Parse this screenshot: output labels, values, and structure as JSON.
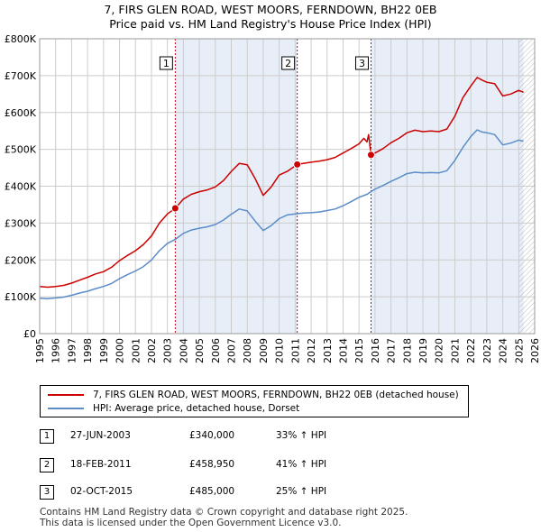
{
  "title_line1": "7, FIRS GLEN ROAD, WEST MOORS, FERNDOWN, BH22 0EB",
  "title_line2": "Price paid vs. HM Land Registry's House Price Index (HPI)",
  "colors": {
    "property": "#cc0000",
    "hpi": "#5b8cc8",
    "shade": "#e8eef8",
    "grid": "#cccccc",
    "vline": "#cc0000"
  },
  "chart_data": {
    "type": "line",
    "ylim": [
      0,
      800000
    ],
    "xlim": [
      1995,
      2026
    ],
    "yticks": [
      {
        "v": 0,
        "label": "£0"
      },
      {
        "v": 100000,
        "label": "£100K"
      },
      {
        "v": 200000,
        "label": "£200K"
      },
      {
        "v": 300000,
        "label": "£300K"
      },
      {
        "v": 400000,
        "label": "£400K"
      },
      {
        "v": 500000,
        "label": "£500K"
      },
      {
        "v": 600000,
        "label": "£600K"
      },
      {
        "v": 700000,
        "label": "£700K"
      },
      {
        "v": 800000,
        "label": "£800K"
      }
    ],
    "xticks": [
      "1995",
      "1996",
      "1997",
      "1998",
      "1999",
      "2000",
      "2001",
      "2002",
      "2003",
      "2004",
      "2005",
      "2006",
      "2007",
      "2008",
      "2009",
      "2010",
      "2011",
      "2012",
      "2013",
      "2014",
      "2015",
      "2016",
      "2017",
      "2018",
      "2019",
      "2020",
      "2021",
      "2022",
      "2023",
      "2024",
      "2025",
      "2026"
    ],
    "shaded_periods": [
      [
        2003.49,
        2011.13
      ],
      [
        2015.75,
        2025.3
      ]
    ],
    "hatch_from": 2025.0,
    "series": [
      {
        "name": "7, FIRS GLEN ROAD, WEST MOORS, FERNDOWN, BH22 0EB (detached house)",
        "color": "#cc0000",
        "points": [
          [
            1995,
            128000
          ],
          [
            1995.5,
            126000
          ],
          [
            1996,
            128000
          ],
          [
            1996.5,
            131000
          ],
          [
            1997,
            137000
          ],
          [
            1997.5,
            145000
          ],
          [
            1998,
            153000
          ],
          [
            1998.5,
            162000
          ],
          [
            1999,
            168000
          ],
          [
            1999.5,
            180000
          ],
          [
            2000,
            198000
          ],
          [
            2000.5,
            212000
          ],
          [
            2001,
            225000
          ],
          [
            2001.5,
            242000
          ],
          [
            2002,
            265000
          ],
          [
            2002.5,
            300000
          ],
          [
            2003,
            325000
          ],
          [
            2003.49,
            340000
          ],
          [
            2004,
            365000
          ],
          [
            2004.5,
            378000
          ],
          [
            2005,
            385000
          ],
          [
            2005.5,
            390000
          ],
          [
            2006,
            398000
          ],
          [
            2006.5,
            415000
          ],
          [
            2007,
            440000
          ],
          [
            2007.5,
            462000
          ],
          [
            2008,
            458000
          ],
          [
            2008.5,
            420000
          ],
          [
            2009,
            375000
          ],
          [
            2009.5,
            398000
          ],
          [
            2010,
            430000
          ],
          [
            2010.5,
            440000
          ],
          [
            2011.13,
            458950
          ],
          [
            2011.5,
            462000
          ],
          [
            2012,
            465000
          ],
          [
            2012.5,
            468000
          ],
          [
            2013,
            472000
          ],
          [
            2013.5,
            478000
          ],
          [
            2014,
            490000
          ],
          [
            2014.5,
            502000
          ],
          [
            2015,
            515000
          ],
          [
            2015.3,
            530000
          ],
          [
            2015.5,
            520000
          ],
          [
            2015.6,
            540000
          ],
          [
            2015.75,
            485000
          ],
          [
            2016,
            490000
          ],
          [
            2016.5,
            502000
          ],
          [
            2017,
            518000
          ],
          [
            2017.5,
            530000
          ],
          [
            2018,
            545000
          ],
          [
            2018.5,
            552000
          ],
          [
            2019,
            548000
          ],
          [
            2019.5,
            550000
          ],
          [
            2020,
            548000
          ],
          [
            2020.5,
            555000
          ],
          [
            2021,
            590000
          ],
          [
            2021.5,
            640000
          ],
          [
            2022,
            672000
          ],
          [
            2022.4,
            695000
          ],
          [
            2022.7,
            688000
          ],
          [
            2023,
            682000
          ],
          [
            2023.5,
            678000
          ],
          [
            2024,
            645000
          ],
          [
            2024.5,
            650000
          ],
          [
            2025,
            660000
          ],
          [
            2025.3,
            655000
          ]
        ]
      },
      {
        "name": "HPI: Average price, detached house, Dorset",
        "color": "#5b8cc8",
        "points": [
          [
            1995,
            96000
          ],
          [
            1995.5,
            95000
          ],
          [
            1996,
            97000
          ],
          [
            1996.5,
            99000
          ],
          [
            1997,
            104000
          ],
          [
            1997.5,
            110000
          ],
          [
            1998,
            115000
          ],
          [
            1998.5,
            122000
          ],
          [
            1999,
            128000
          ],
          [
            1999.5,
            136000
          ],
          [
            2000,
            149000
          ],
          [
            2000.5,
            160000
          ],
          [
            2001,
            170000
          ],
          [
            2001.5,
            182000
          ],
          [
            2002,
            200000
          ],
          [
            2002.5,
            225000
          ],
          [
            2003,
            245000
          ],
          [
            2003.5,
            256000
          ],
          [
            2004,
            272000
          ],
          [
            2004.5,
            281000
          ],
          [
            2005,
            286000
          ],
          [
            2005.5,
            290000
          ],
          [
            2006,
            296000
          ],
          [
            2006.5,
            308000
          ],
          [
            2007,
            324000
          ],
          [
            2007.5,
            338000
          ],
          [
            2008,
            333000
          ],
          [
            2008.5,
            305000
          ],
          [
            2009,
            280000
          ],
          [
            2009.5,
            293000
          ],
          [
            2010,
            312000
          ],
          [
            2010.5,
            322000
          ],
          [
            2011,
            325000
          ],
          [
            2011.5,
            327000
          ],
          [
            2012,
            328000
          ],
          [
            2012.5,
            330000
          ],
          [
            2013,
            334000
          ],
          [
            2013.5,
            338000
          ],
          [
            2014,
            347000
          ],
          [
            2014.5,
            358000
          ],
          [
            2015,
            370000
          ],
          [
            2015.5,
            378000
          ],
          [
            2016,
            392000
          ],
          [
            2016.5,
            402000
          ],
          [
            2017,
            413000
          ],
          [
            2017.5,
            423000
          ],
          [
            2018,
            434000
          ],
          [
            2018.5,
            438000
          ],
          [
            2019,
            436000
          ],
          [
            2019.5,
            437000
          ],
          [
            2020,
            436000
          ],
          [
            2020.5,
            442000
          ],
          [
            2021,
            470000
          ],
          [
            2021.5,
            505000
          ],
          [
            2022,
            535000
          ],
          [
            2022.4,
            553000
          ],
          [
            2022.7,
            547000
          ],
          [
            2023,
            545000
          ],
          [
            2023.5,
            540000
          ],
          [
            2024,
            512000
          ],
          [
            2024.5,
            517000
          ],
          [
            2025,
            525000
          ],
          [
            2025.3,
            522000
          ]
        ]
      }
    ],
    "sales": [
      {
        "id": "1",
        "x": 2003.49,
        "value": 340000,
        "date": "27-JUN-2003",
        "price": "£340,000",
        "hpi": "33% ↑ HPI"
      },
      {
        "id": "2",
        "x": 2011.13,
        "value": 458950,
        "date": "18-FEB-2011",
        "price": "£458,950",
        "hpi": "41% ↑ HPI"
      },
      {
        "id": "3",
        "x": 2015.75,
        "value": 485000,
        "date": "02-OCT-2015",
        "price": "£485,000",
        "hpi": "25% ↑ HPI"
      }
    ]
  },
  "legend": {
    "property_label": "7, FIRS GLEN ROAD, WEST MOORS, FERNDOWN, BH22 0EB (detached house)",
    "hpi_label": "HPI: Average price, detached house, Dorset"
  },
  "footer_line1": "Contains HM Land Registry data © Crown copyright and database right 2025.",
  "footer_line2": "This data is licensed under the Open Government Licence v3.0."
}
